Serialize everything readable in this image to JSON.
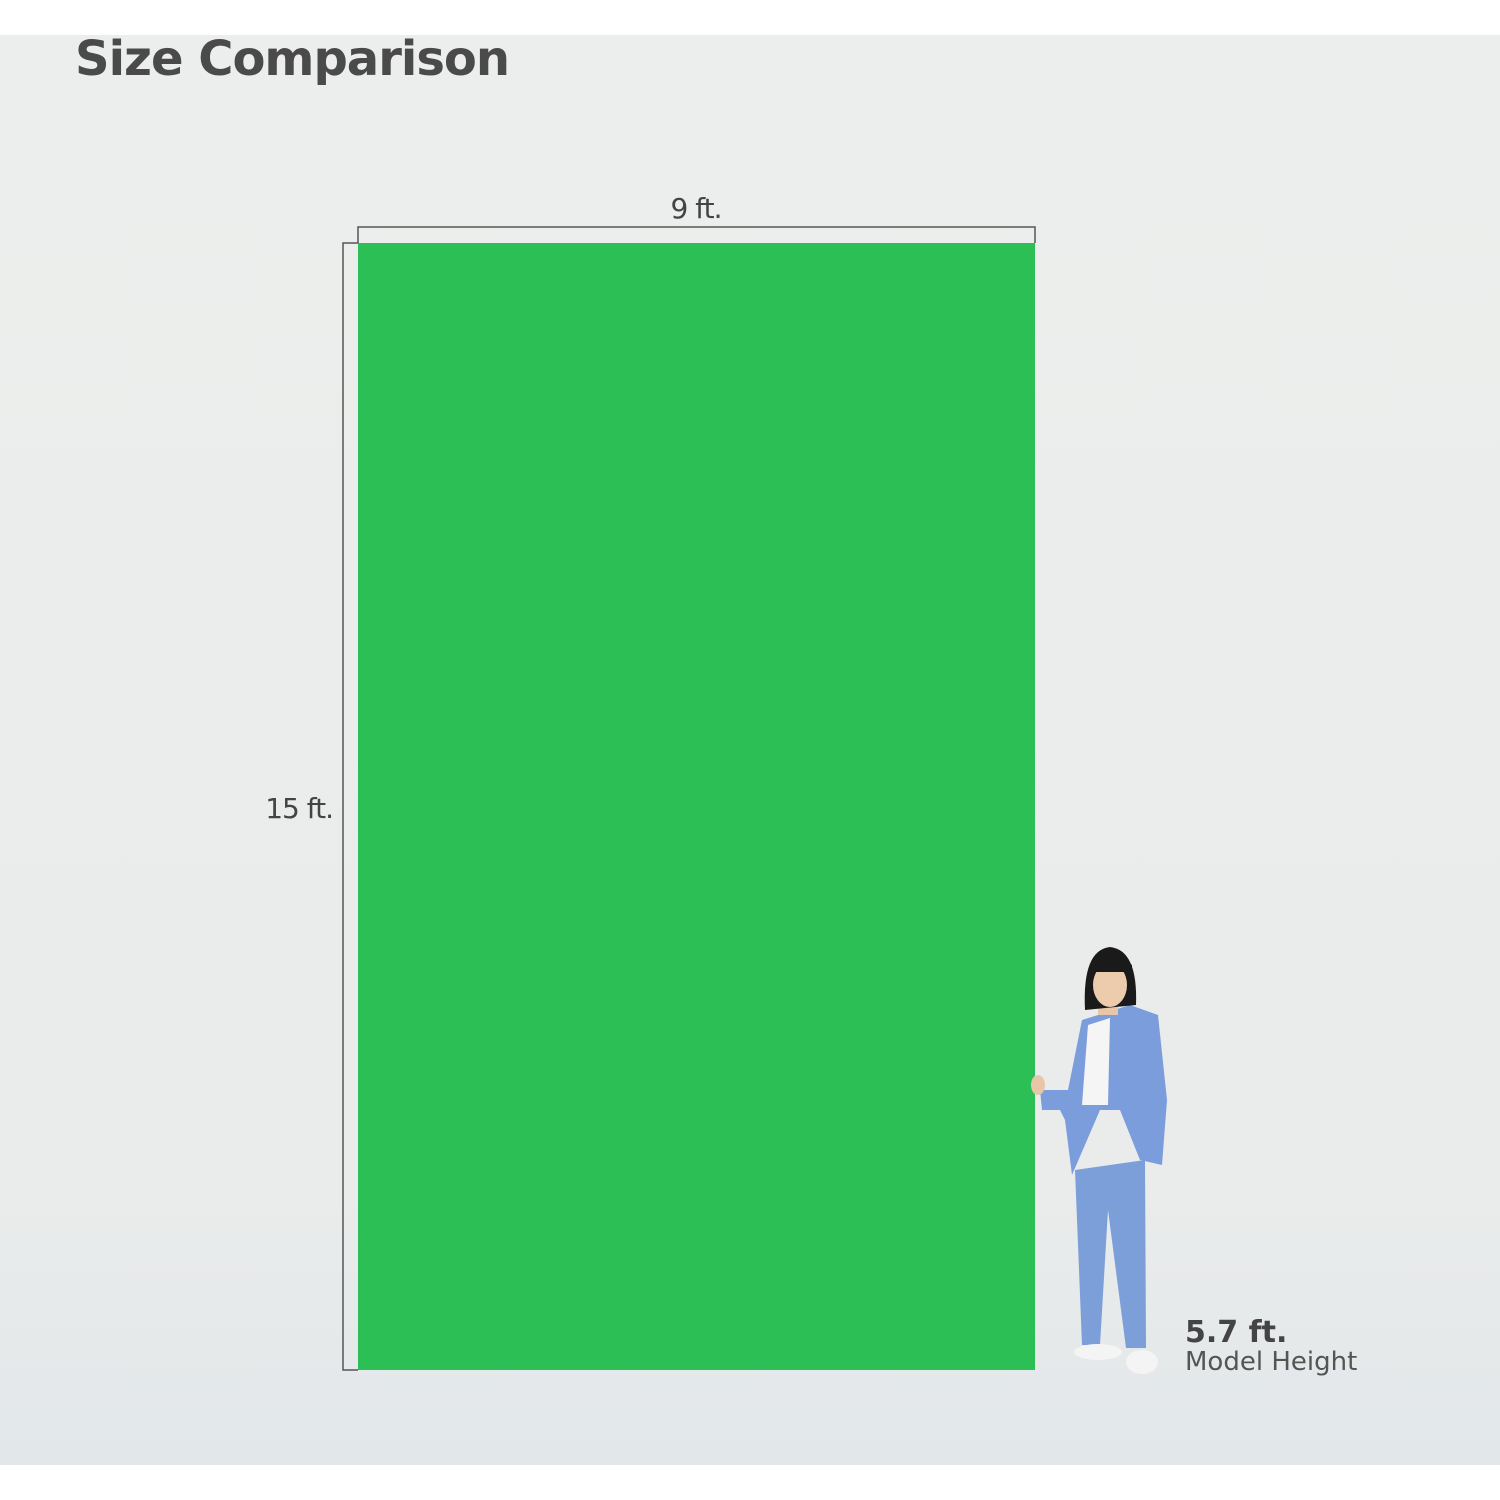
{
  "header": {
    "title": "Size Comparison"
  },
  "backdrop": {
    "width_label": "9 ft.",
    "height_label": "15 ft."
  },
  "model": {
    "height_label": "5.7 ft.",
    "caption": "Model Height"
  }
}
